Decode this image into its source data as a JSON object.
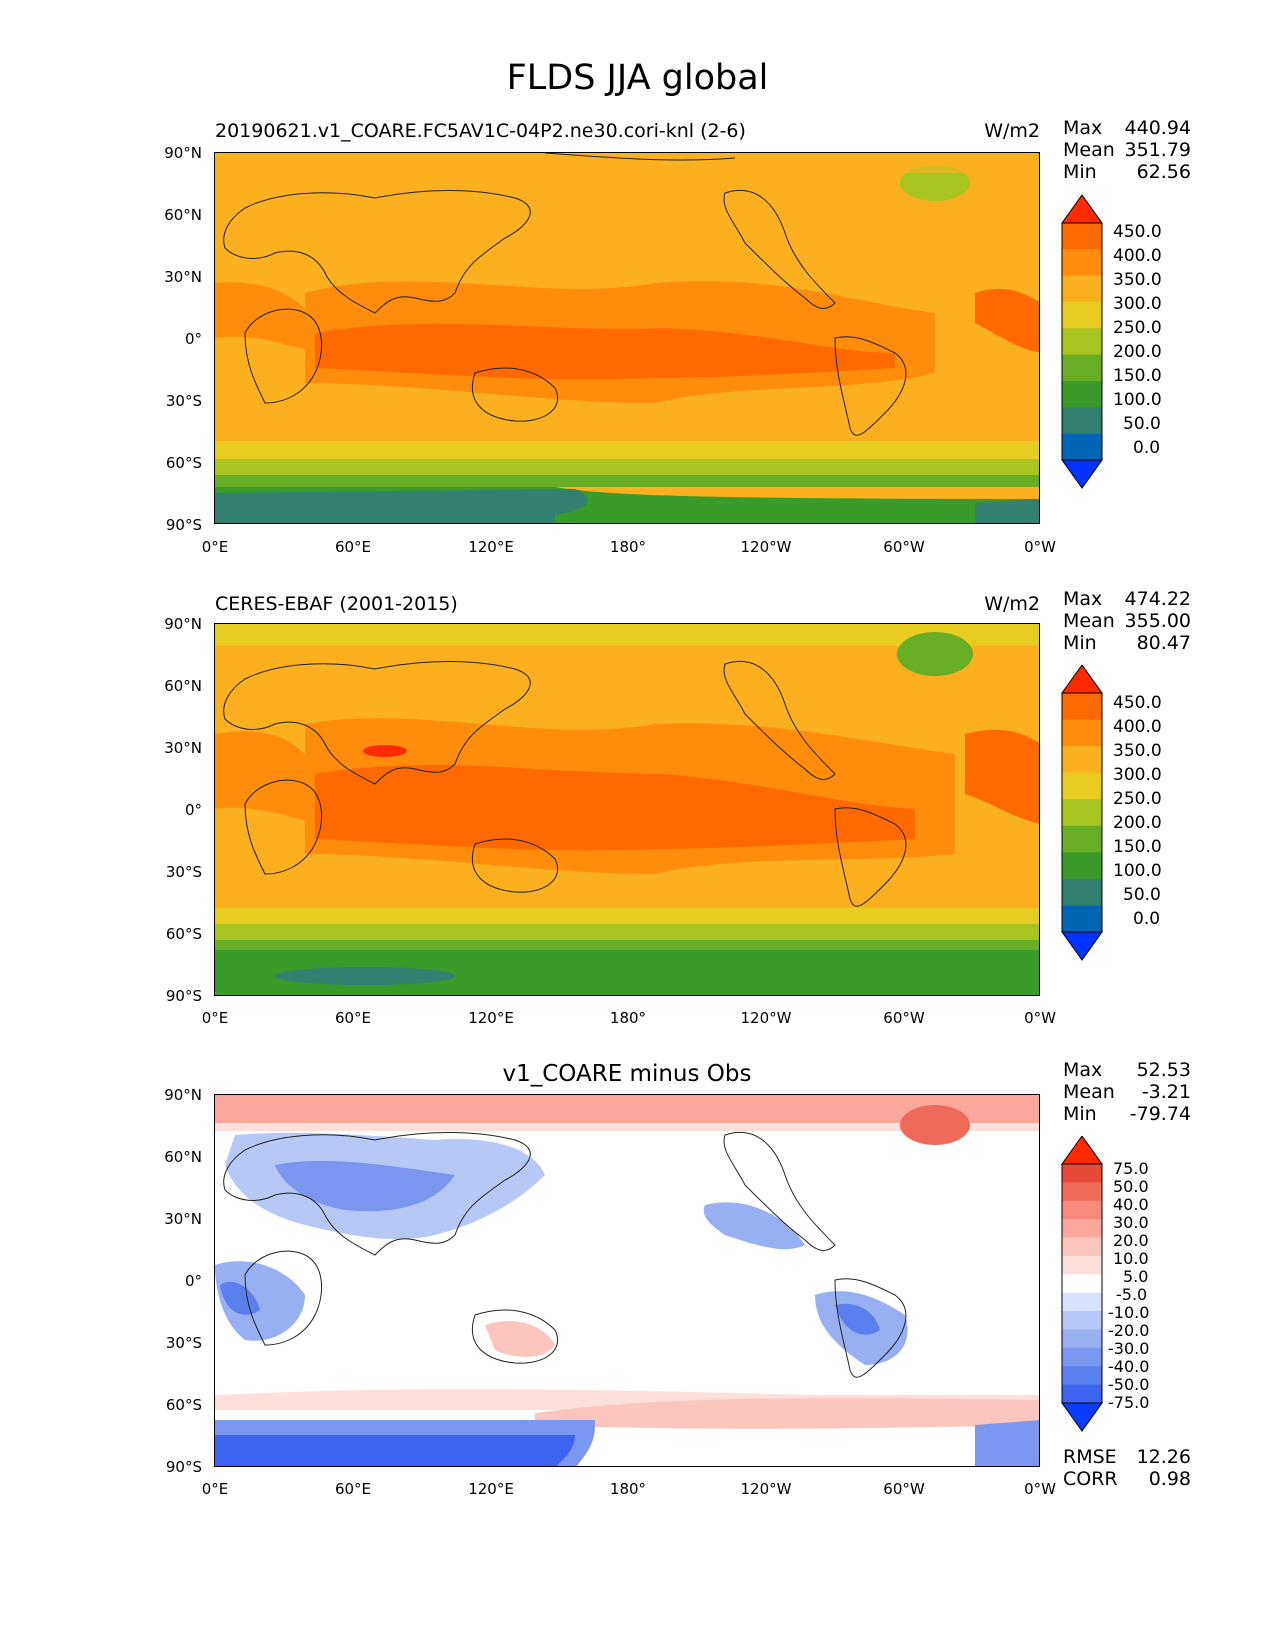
{
  "title": "FLDS JJA global",
  "panels": [
    {
      "id": "test",
      "left_title": "20190621.v1_COARE.FC5AV1C-04P2.ne30.cori-knl (2-6)",
      "center_title": "",
      "units": "W/m2",
      "stats": [
        {
          "label": "Max",
          "value": "440.94"
        },
        {
          "label": "Mean",
          "value": "351.79"
        },
        {
          "label": "Min",
          "value": "62.56"
        }
      ],
      "colorbar_labels": [
        "450.0",
        "400.0",
        "350.0",
        "300.0",
        "250.0",
        "200.0",
        "150.0",
        "100.0",
        "50.0",
        "0.0"
      ]
    },
    {
      "id": "ref",
      "left_title": "CERES-EBAF (2001-2015)",
      "center_title": "",
      "units": "W/m2",
      "stats": [
        {
          "label": "Max",
          "value": "474.22"
        },
        {
          "label": "Mean",
          "value": "355.00"
        },
        {
          "label": "Min",
          "value": "80.47"
        }
      ],
      "colorbar_labels": [
        "450.0",
        "400.0",
        "350.0",
        "300.0",
        "250.0",
        "200.0",
        "150.0",
        "100.0",
        "50.0",
        "0.0"
      ]
    },
    {
      "id": "diff",
      "left_title": "",
      "center_title": "v1_COARE minus Obs",
      "units": "",
      "stats": [
        {
          "label": "Max",
          "value": "52.53"
        },
        {
          "label": "Mean",
          "value": "-3.21"
        },
        {
          "label": "Min",
          "value": "-79.74"
        }
      ],
      "colorbar_labels": [
        "75.0",
        "50.0",
        "40.0",
        "30.0",
        "20.0",
        "10.0",
        "5.0",
        "-5.0",
        "-10.0",
        "-20.0",
        "-30.0",
        "-40.0",
        "-50.0",
        "-75.0"
      ],
      "extra_stats": [
        {
          "label": "RMSE",
          "value": "12.26"
        },
        {
          "label": "CORR",
          "value": "0.98"
        }
      ]
    }
  ],
  "lat_labels": [
    "90°N",
    "60°N",
    "30°N",
    "0°",
    "30°S",
    "60°S",
    "90°S"
  ],
  "lon_labels": [
    "0°E",
    "60°E",
    "120°E",
    "180°",
    "120°W",
    "60°W",
    "0°W"
  ],
  "colors": {
    "abs_scale": [
      "#0033ff",
      "#0066b3",
      "#338070",
      "#3a9a2a",
      "#68ae24",
      "#a8c421",
      "#e8cc22",
      "#fbb01f",
      "#ff8c0a",
      "#ff6a00",
      "#ff2a00"
    ],
    "diff_scale": [
      "#0a3cff",
      "#3c64f0",
      "#5a80ee",
      "#7a98f0",
      "#98b0f2",
      "#b8c8f6",
      "#d8e2fa",
      "#ffffff",
      "#fde0dc",
      "#fcc6be",
      "#fba89c",
      "#f78a7c",
      "#f06a5a",
      "#e84a38",
      "#ff2a00"
    ]
  }
}
